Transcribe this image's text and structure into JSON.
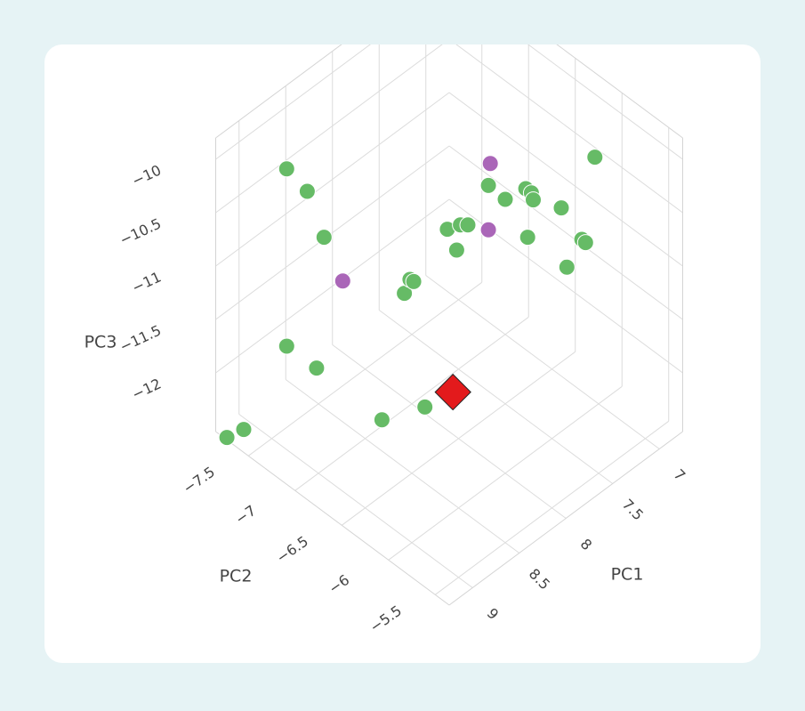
{
  "chart_data": {
    "type": "scatter3d",
    "x_label": "PC1",
    "y_label": "PC2",
    "z_label": "PC3",
    "xlim": [
      6.75,
      9.25
    ],
    "ylim": [
      -7.85,
      -5.35
    ],
    "zlim": [
      -12.55,
      -9.8
    ],
    "xticks": [
      7,
      7.5,
      8,
      8.5,
      9
    ],
    "yticks": [
      {
        "value": -7.5,
        "label": "−7.5"
      },
      {
        "value": -7,
        "label": "−7"
      },
      {
        "value": -6.5,
        "label": "−6.5"
      },
      {
        "value": -6,
        "label": "−6"
      },
      {
        "value": -5.5,
        "label": "−5.5"
      }
    ],
    "zticks": [
      {
        "value": -12,
        "label": "−12"
      },
      {
        "value": -11.5,
        "label": "−11.5"
      },
      {
        "value": -11,
        "label": "−11"
      },
      {
        "value": -10.5,
        "label": "−10.5"
      },
      {
        "value": -10,
        "label": "−10"
      }
    ],
    "grid": true,
    "series": [
      {
        "color": "#66bb66",
        "symbol": "circle",
        "x": [
          8.87,
          8.76,
          8.67,
          8.87,
          8.86,
          9.2,
          9.24,
          8.86,
          8.63,
          8.39,
          8.36,
          8.34,
          7.86,
          7.79,
          7.75,
          7.96,
          7.64,
          7.55,
          7.34,
          7.31,
          7.35,
          7.25,
          6.82,
          7.58,
          7.29,
          7.27,
          7.47
        ],
        "y": [
          -7.47,
          -7.36,
          -7.27,
          -7.47,
          -7.16,
          -7.6,
          -7.74,
          -6.46,
          -6.23,
          -6.69,
          -6.66,
          -6.64,
          -6.76,
          -6.69,
          -6.65,
          -6.56,
          -6.54,
          -6.45,
          -6.44,
          -6.41,
          -6.35,
          -6.15,
          -6.22,
          -6.18,
          -5.89,
          -5.87,
          -5.87
        ],
        "z": [
          -10.09,
          -10.3,
          -10.73,
          -11.75,
          -11.76,
          -12.4,
          -12.54,
          -11.79,
          -11.67,
          -11.06,
          -10.93,
          -10.95,
          -10.85,
          -10.81,
          -10.81,
          -10.85,
          -10.44,
          -10.57,
          -10.6,
          -10.64,
          -10.64,
          -10.65,
          -10.5,
          -10.73,
          -10.75,
          -10.78,
          -10.88
        ]
      },
      {
        "color": "#aa66b8",
        "symbol": "circle",
        "x": [
          8.67,
          7.48,
          7.79
        ],
        "y": [
          -7.07,
          -6.68,
          -6.39
        ],
        "z": [
          -11.01,
          -10.43,
          -10.66
        ]
      },
      {
        "color": "#e31a1c",
        "symbol": "diamond",
        "x": [
          8.48
        ],
        "y": [
          -6.08
        ],
        "z": [
          -11.53
        ]
      }
    ]
  }
}
